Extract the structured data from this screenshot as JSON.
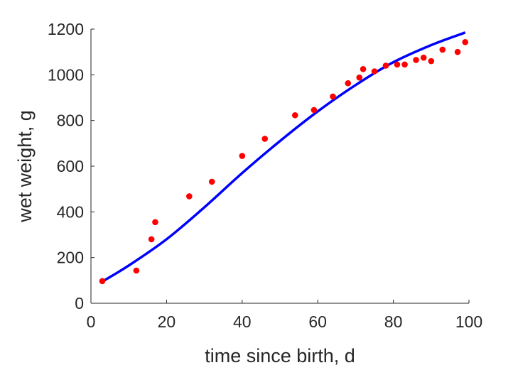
{
  "chart_data": {
    "type": "scatter",
    "xlabel": "time since birth, d",
    "ylabel": "wet weight, g",
    "xlim": [
      0,
      100
    ],
    "ylim": [
      0,
      1200
    ],
    "xticks": [
      0,
      20,
      40,
      60,
      80,
      100
    ],
    "yticks": [
      0,
      200,
      400,
      600,
      800,
      1000,
      1200
    ],
    "grid": false,
    "box": false,
    "colors": {
      "points": "#ff0000",
      "curve": "#0000ff",
      "axes": "#262626"
    },
    "points": {
      "x": [
        3,
        12,
        16,
        17,
        26,
        32,
        40,
        46,
        54,
        59,
        64,
        68,
        71,
        72,
        75,
        78,
        81,
        83,
        86,
        88,
        90,
        93,
        97,
        99
      ],
      "y": [
        97,
        143,
        280,
        355,
        468,
        532,
        645,
        720,
        823,
        846,
        905,
        963,
        988,
        1025,
        1015,
        1040,
        1045,
        1045,
        1065,
        1075,
        1060,
        1110,
        1100,
        1143
      ]
    },
    "curve": {
      "x": [
        3,
        10,
        20,
        30,
        40,
        50,
        60,
        70,
        80,
        90,
        99
      ],
      "y": [
        95,
        165,
        280,
        420,
        570,
        710,
        840,
        955,
        1055,
        1130,
        1185
      ]
    }
  }
}
